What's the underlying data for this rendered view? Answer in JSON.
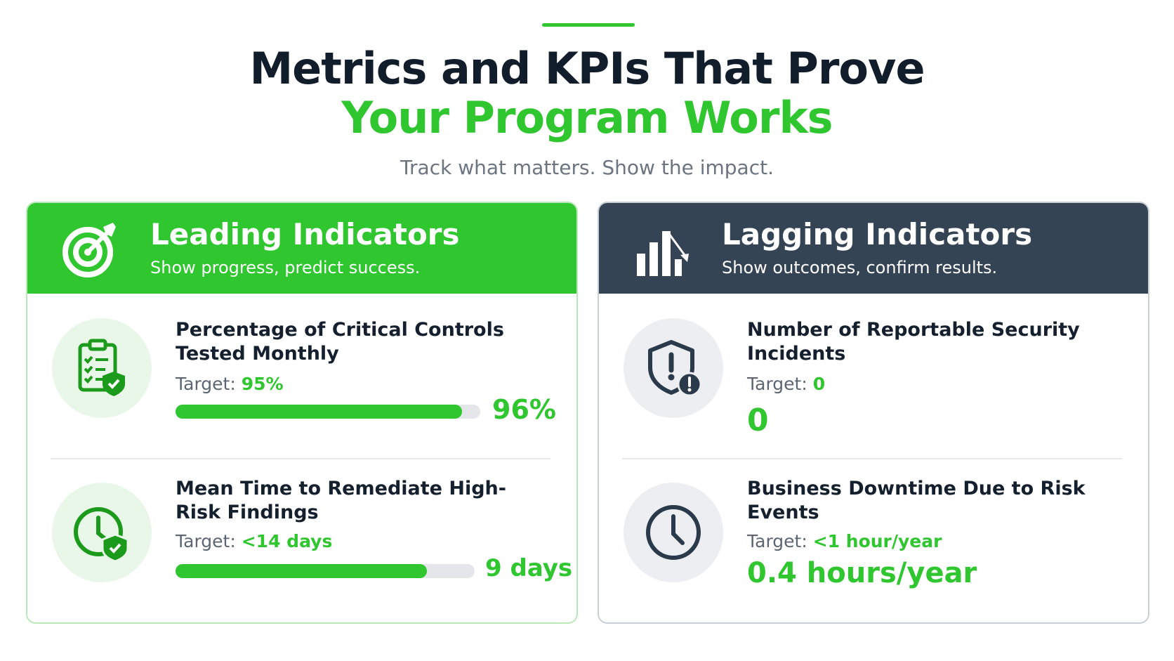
{
  "title_line1": "Metrics and KPIs That Prove",
  "title_line2": "Your Program Works",
  "subtitle": "Track what matters. Show the impact.",
  "colors": {
    "accent": "#2fc62f",
    "dark": "#354455",
    "heading": "#121d2b"
  },
  "leading": {
    "icon": "target-icon",
    "title": "Leading Indicators",
    "subtitle": "Show progress, predict success.",
    "metrics": [
      {
        "icon": "checklist-shield-icon",
        "title": "Percentage of Critical Controls Tested Monthly",
        "target_label": "Target:",
        "target_value": "95%",
        "actual": "96%",
        "progress": 0.94
      },
      {
        "icon": "clock-shield-icon",
        "title": "Mean Time to Remediate High-Risk Findings",
        "target_label": "Target:",
        "target_value": "<14 days",
        "actual": "9 days",
        "progress": 0.84
      }
    ]
  },
  "lagging": {
    "icon": "bar-chart-down-icon",
    "title": "Lagging Indicators",
    "subtitle": "Show outcomes, confirm results.",
    "metrics": [
      {
        "icon": "shield-alert-icon",
        "title": "Number of Reportable Security Incidents",
        "target_label": "Target:",
        "target_value": "0",
        "actual": "0"
      },
      {
        "icon": "clock-icon",
        "title": "Business Downtime Due to Risk Events",
        "target_label": "Target:",
        "target_value": "<1 hour/year",
        "actual": "0.4 hours/year"
      }
    ]
  }
}
